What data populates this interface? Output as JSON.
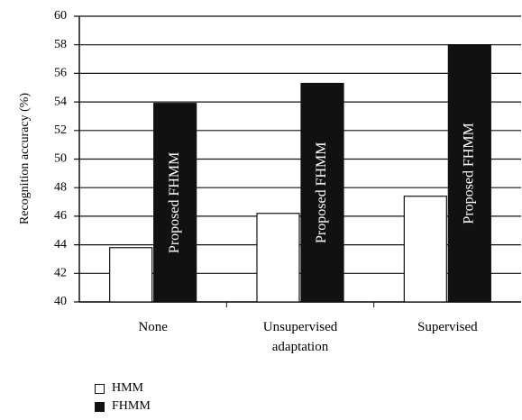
{
  "chart_data": {
    "type": "bar",
    "y_label": "Recognition accuracy (%)",
    "categories": [
      "None",
      "Unsupervised adaptation",
      "Supervised"
    ],
    "series": [
      {
        "name": "HMM",
        "color": "#ffffff",
        "values": [
          43.8,
          46.2,
          47.4
        ]
      },
      {
        "name": "FHMM",
        "color": "#111111",
        "values": [
          53.9,
          55.3,
          58.0
        ]
      }
    ],
    "bar_label": "Proposed FHMM",
    "ylim": [
      40,
      60
    ],
    "yticks": [
      40,
      42,
      44,
      46,
      48,
      50,
      52,
      54,
      56,
      58,
      60
    ],
    "grid": true
  }
}
